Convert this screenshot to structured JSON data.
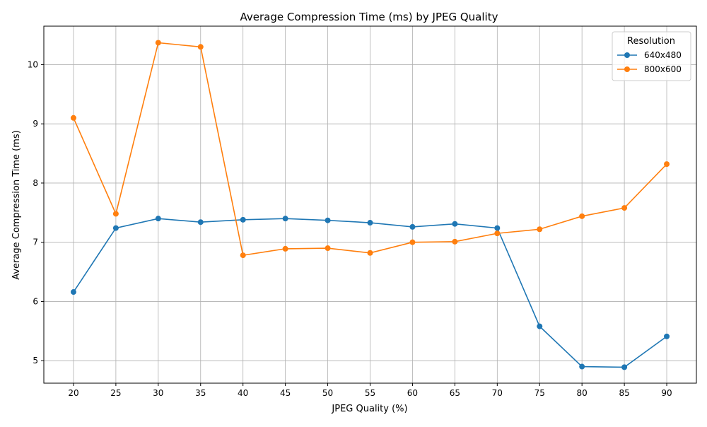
{
  "chart_data": {
    "type": "line",
    "title": "Average Compression Time (ms) by JPEG Quality",
    "xlabel": "JPEG Quality (%)",
    "ylabel": "Average Compression Time (ms)",
    "x": [
      20,
      25,
      30,
      35,
      40,
      45,
      50,
      55,
      60,
      65,
      70,
      75,
      80,
      85,
      90
    ],
    "xlim": [
      16.5,
      93.5
    ],
    "ylim": [
      4.62,
      10.65
    ],
    "yticks": [
      5,
      6,
      7,
      8,
      9,
      10
    ],
    "grid": true,
    "legend": {
      "title": "Resolution",
      "position": "top-right"
    },
    "series": [
      {
        "name": "640x480",
        "color": "#1f77b4",
        "values": [
          6.16,
          7.24,
          7.4,
          7.34,
          7.38,
          7.4,
          7.37,
          7.33,
          7.26,
          7.31,
          7.24,
          5.58,
          4.9,
          4.89,
          5.41
        ]
      },
      {
        "name": "800x600",
        "color": "#ff7f0e",
        "values": [
          9.1,
          7.48,
          10.37,
          10.3,
          6.78,
          6.89,
          6.9,
          6.82,
          7.0,
          7.01,
          7.15,
          7.22,
          7.44,
          7.58,
          8.32
        ]
      }
    ]
  }
}
